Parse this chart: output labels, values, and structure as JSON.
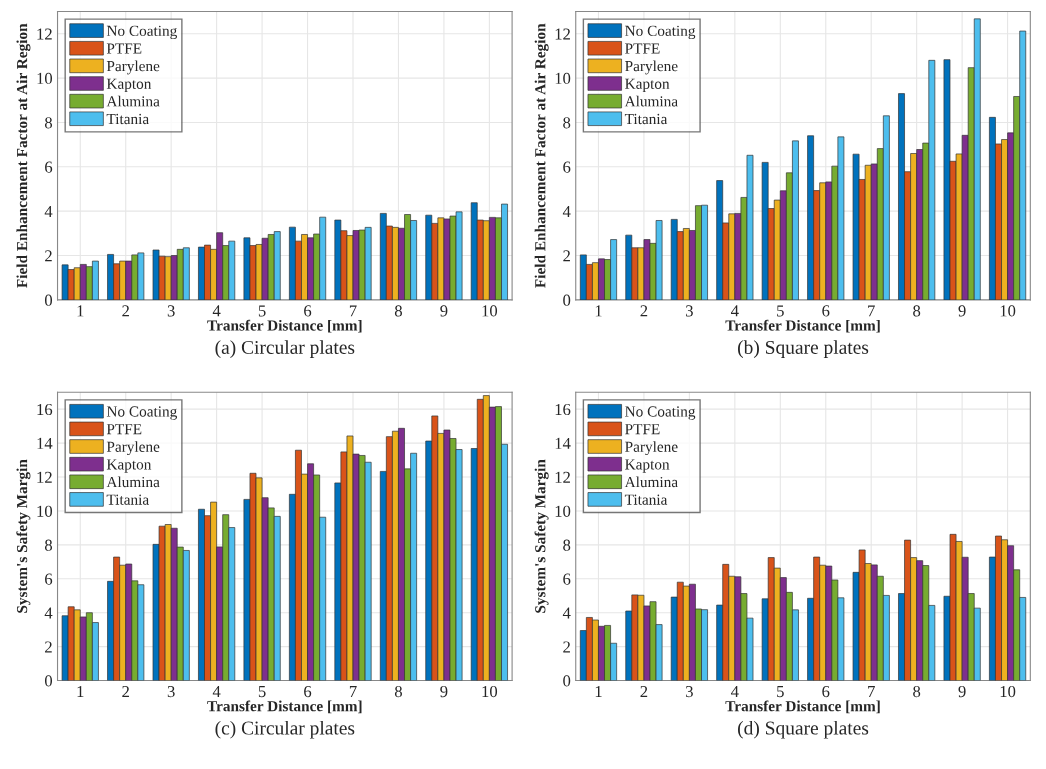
{
  "chart_data": [
    {
      "type": "bar",
      "xlabel": "Transfer Distance [mm]",
      "ylabel": "Field Enhancement Factor at Air Region",
      "annotations": [
        "(a) Circular plates"
      ],
      "categories": [
        "1",
        "2",
        "3",
        "4",
        "5",
        "6",
        "7",
        "8",
        "9",
        "10"
      ],
      "ylim": [
        0,
        13
      ],
      "yticks": [
        0,
        2,
        4,
        6,
        8,
        10,
        12
      ],
      "grid": true,
      "legend": "top left",
      "series": [
        {
          "name": "No Coating",
          "color": "#0072bd",
          "values": [
            1.58,
            2.05,
            2.25,
            2.38,
            2.8,
            3.28,
            3.6,
            3.9,
            3.82,
            4.38
          ]
        },
        {
          "name": "PTFE",
          "color": "#d95319",
          "values": [
            1.37,
            1.63,
            1.97,
            2.47,
            2.45,
            2.65,
            3.12,
            3.33,
            3.45,
            3.6
          ]
        },
        {
          "name": "Parylene",
          "color": "#edb120",
          "values": [
            1.45,
            1.75,
            1.95,
            2.28,
            2.5,
            2.95,
            2.9,
            3.27,
            3.7,
            3.57
          ]
        },
        {
          "name": "Kapton",
          "color": "#7e2f8e",
          "values": [
            1.6,
            1.75,
            2.0,
            3.03,
            2.78,
            2.8,
            3.13,
            3.23,
            3.65,
            3.72
          ]
        },
        {
          "name": "Alumina",
          "color": "#77ac30",
          "values": [
            1.5,
            2.03,
            2.28,
            2.45,
            2.95,
            2.97,
            3.15,
            3.85,
            3.78,
            3.7
          ]
        },
        {
          "name": "Titania",
          "color": "#4dbeee",
          "values": [
            1.75,
            2.12,
            2.35,
            2.65,
            3.08,
            3.73,
            3.27,
            3.58,
            3.97,
            4.32
          ]
        }
      ]
    },
    {
      "type": "bar",
      "xlabel": "Transfer Distance [mm]",
      "ylabel": "Field Enhancement Factor at Air Region",
      "annotations": [
        "(b) Square plates"
      ],
      "categories": [
        "1",
        "2",
        "3",
        "4",
        "5",
        "6",
        "7",
        "8",
        "9",
        "10"
      ],
      "ylim": [
        0,
        13
      ],
      "yticks": [
        0,
        2,
        4,
        6,
        8,
        10,
        12
      ],
      "grid": true,
      "legend": "top left",
      "series": [
        {
          "name": "No Coating",
          "color": "#0072bd",
          "values": [
            2.03,
            2.92,
            3.63,
            5.38,
            6.2,
            7.4,
            6.57,
            9.3,
            10.83,
            8.23
          ]
        },
        {
          "name": "PTFE",
          "color": "#d95319",
          "values": [
            1.6,
            2.35,
            3.08,
            3.47,
            4.12,
            4.93,
            5.43,
            5.78,
            6.25,
            7.03
          ]
        },
        {
          "name": "Parylene",
          "color": "#edb120",
          "values": [
            1.68,
            2.35,
            3.22,
            3.88,
            4.5,
            5.28,
            6.07,
            6.6,
            6.58,
            7.23
          ]
        },
        {
          "name": "Kapton",
          "color": "#7e2f8e",
          "values": [
            1.85,
            2.72,
            3.13,
            3.9,
            4.92,
            5.32,
            6.13,
            6.78,
            7.42,
            7.53
          ]
        },
        {
          "name": "Alumina",
          "color": "#77ac30",
          "values": [
            1.82,
            2.55,
            4.25,
            4.62,
            5.73,
            6.03,
            6.82,
            7.07,
            10.47,
            9.17
          ]
        },
        {
          "name": "Titania",
          "color": "#4dbeee",
          "values": [
            2.72,
            3.58,
            4.27,
            6.52,
            7.17,
            7.35,
            8.3,
            10.8,
            12.67,
            12.12
          ]
        }
      ]
    },
    {
      "type": "bar",
      "xlabel": "Transfer Distance [mm]",
      "ylabel": "System's Safety Margin",
      "annotations": [
        "(c) Circular plates"
      ],
      "categories": [
        "1",
        "2",
        "3",
        "4",
        "5",
        "6",
        "7",
        "8",
        "9",
        "10"
      ],
      "ylim": [
        0,
        17
      ],
      "yticks": [
        0,
        2,
        4,
        6,
        8,
        10,
        12,
        14,
        16
      ],
      "grid": true,
      "legend": "top left",
      "series": [
        {
          "name": "No Coating",
          "color": "#0072bd",
          "values": [
            3.82,
            5.85,
            8.03,
            10.1,
            10.68,
            10.98,
            11.65,
            12.33,
            14.12,
            13.68
          ]
        },
        {
          "name": "PTFE",
          "color": "#d95319",
          "values": [
            4.35,
            7.28,
            9.1,
            9.72,
            12.22,
            13.58,
            13.48,
            14.38,
            15.6,
            16.58
          ]
        },
        {
          "name": "Parylene",
          "color": "#edb120",
          "values": [
            4.17,
            6.8,
            9.2,
            10.52,
            11.95,
            12.17,
            14.42,
            14.7,
            14.57,
            16.8
          ]
        },
        {
          "name": "Kapton",
          "color": "#7e2f8e",
          "values": [
            3.75,
            6.87,
            8.98,
            7.88,
            10.78,
            12.78,
            13.35,
            14.87,
            14.77,
            16.12
          ]
        },
        {
          "name": "Alumina",
          "color": "#77ac30",
          "values": [
            4.0,
            5.88,
            7.87,
            9.78,
            10.18,
            12.12,
            13.27,
            12.48,
            14.27,
            16.15
          ]
        },
        {
          "name": "Titania",
          "color": "#4dbeee",
          "values": [
            3.42,
            5.65,
            7.67,
            9.02,
            9.68,
            9.63,
            12.87,
            13.4,
            13.62,
            13.93
          ]
        }
      ]
    },
    {
      "type": "bar",
      "xlabel": "Transfer Distance [mm]",
      "ylabel": "System's Safety Margin",
      "annotations": [
        "(d) Square plates"
      ],
      "categories": [
        "1",
        "2",
        "3",
        "4",
        "5",
        "6",
        "7",
        "8",
        "9",
        "10"
      ],
      "ylim": [
        0,
        17
      ],
      "yticks": [
        0,
        2,
        4,
        6,
        8,
        10,
        12,
        14,
        16
      ],
      "grid": true,
      "legend": "top left",
      "series": [
        {
          "name": "No Coating",
          "color": "#0072bd",
          "values": [
            2.95,
            4.1,
            4.92,
            4.45,
            4.82,
            4.85,
            6.38,
            5.13,
            4.97,
            7.28
          ]
        },
        {
          "name": "PTFE",
          "color": "#d95319",
          "values": [
            3.72,
            5.05,
            5.8,
            6.85,
            7.25,
            7.28,
            7.7,
            8.28,
            8.62,
            8.52
          ]
        },
        {
          "name": "Parylene",
          "color": "#edb120",
          "values": [
            3.57,
            5.03,
            5.57,
            6.15,
            6.63,
            6.8,
            6.9,
            7.25,
            8.2,
            8.3
          ]
        },
        {
          "name": "Kapton",
          "color": "#7e2f8e",
          "values": [
            3.2,
            4.4,
            5.68,
            6.12,
            6.07,
            6.75,
            6.82,
            7.07,
            7.27,
            7.95
          ]
        },
        {
          "name": "Alumina",
          "color": "#77ac30",
          "values": [
            3.25,
            4.65,
            4.22,
            5.13,
            5.2,
            5.93,
            6.15,
            6.78,
            5.13,
            6.53
          ]
        },
        {
          "name": "Titania",
          "color": "#4dbeee",
          "values": [
            2.2,
            3.3,
            4.18,
            3.68,
            4.17,
            4.88,
            5.02,
            4.43,
            4.27,
            4.9
          ]
        }
      ]
    }
  ]
}
